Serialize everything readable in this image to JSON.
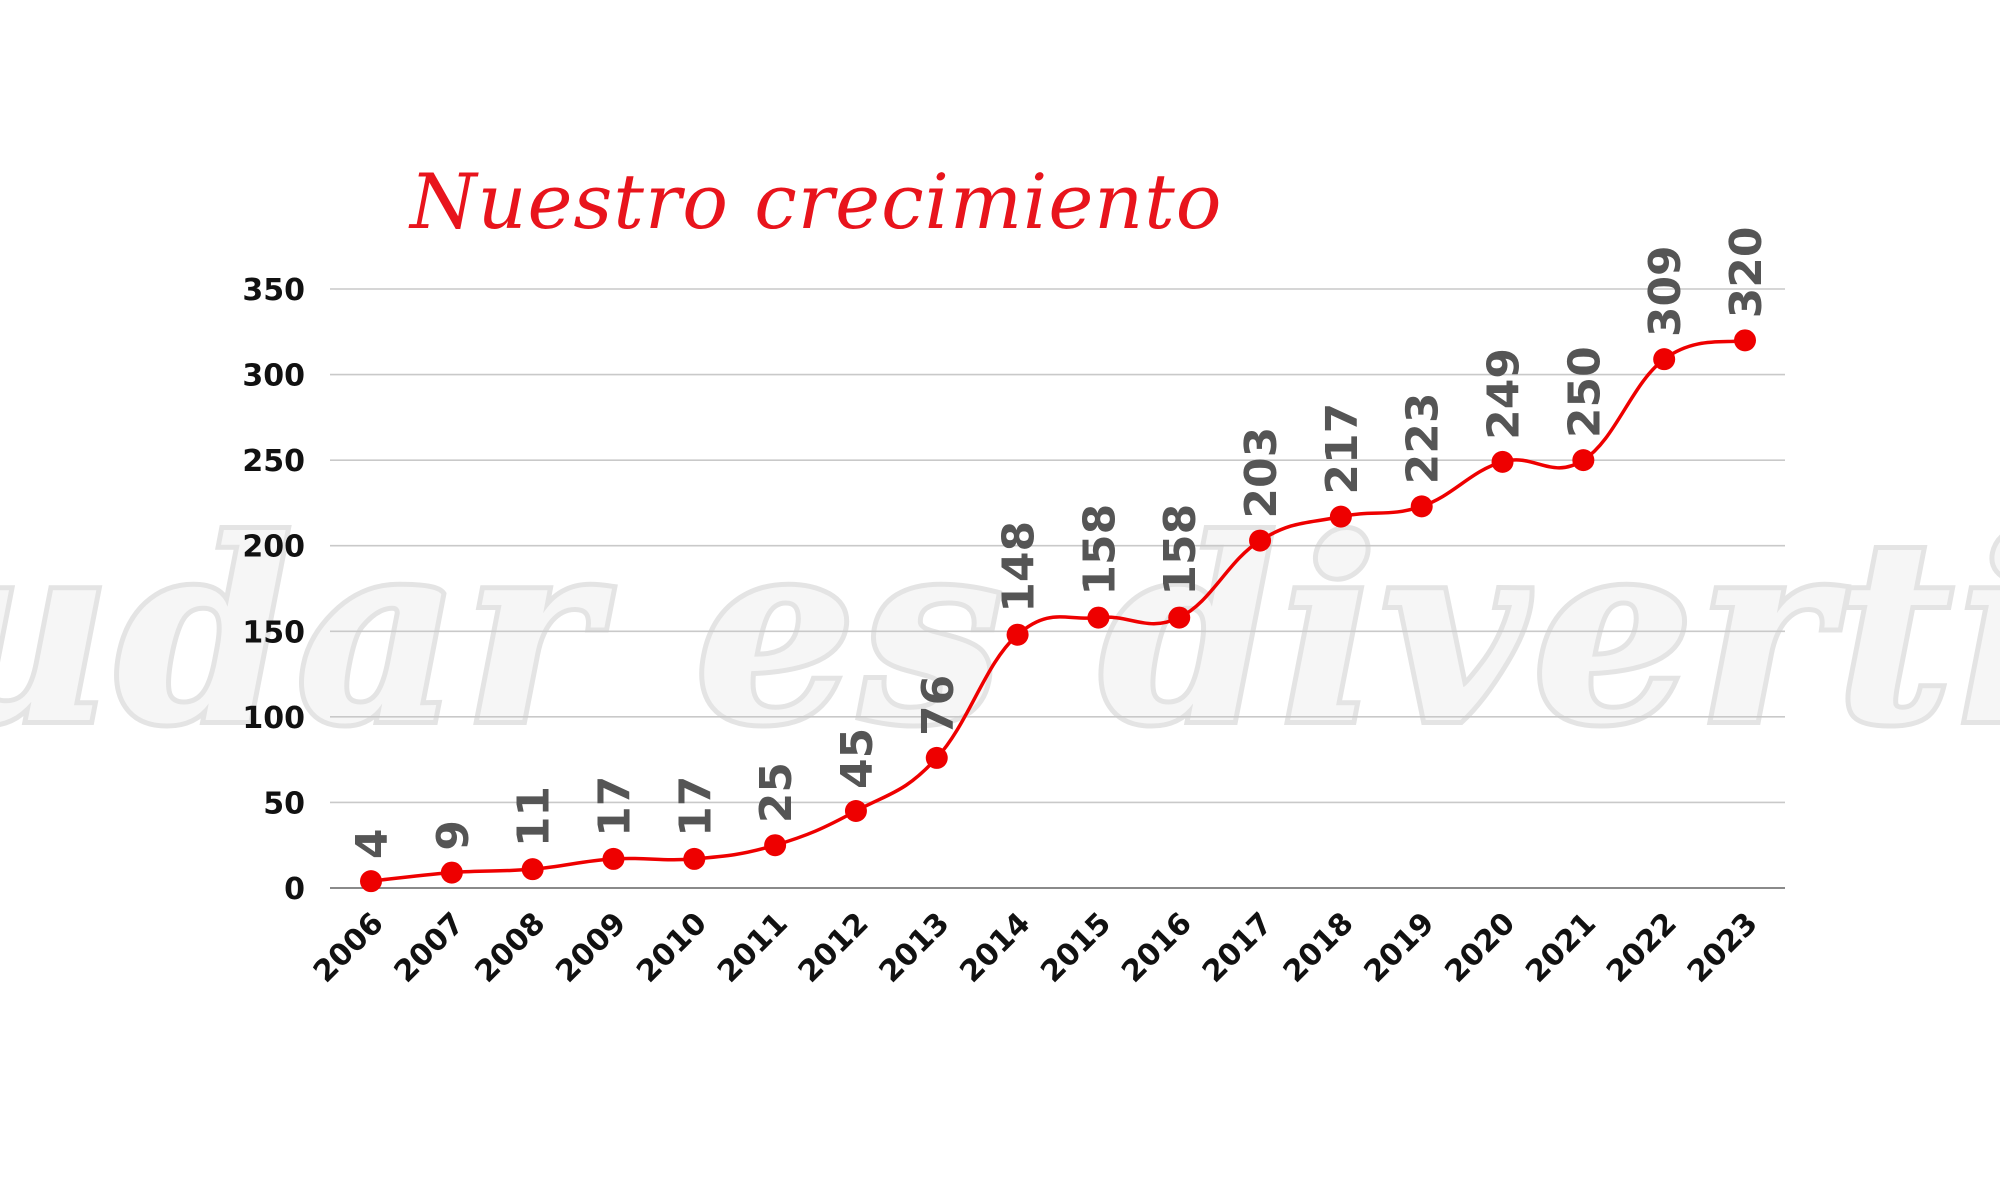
{
  "chart_data": {
    "type": "line",
    "title": "Nuestro crecimiento",
    "watermark": "!Ayudar es divertido¡",
    "xlabel": "",
    "ylabel": "",
    "categories": [
      "2006",
      "2007",
      "2008",
      "2009",
      "2010",
      "2011",
      "2012",
      "2013",
      "2014",
      "2015",
      "2016",
      "2017",
      "2018",
      "2019",
      "2020",
      "2021",
      "2022",
      "2023"
    ],
    "series": [
      {
        "values": [
          4,
          9,
          11,
          17,
          17,
          25,
          45,
          76,
          148,
          158,
          158,
          203,
          217,
          223,
          249,
          250,
          309,
          320
        ],
        "color": "#ee0000"
      }
    ],
    "ylim": [
      0,
      350
    ],
    "yticks": [
      "0",
      "50",
      "100",
      "150",
      "200",
      "250",
      "300",
      "350"
    ],
    "grid": true,
    "legend": "none",
    "smooth": true,
    "data_labels": true
  }
}
